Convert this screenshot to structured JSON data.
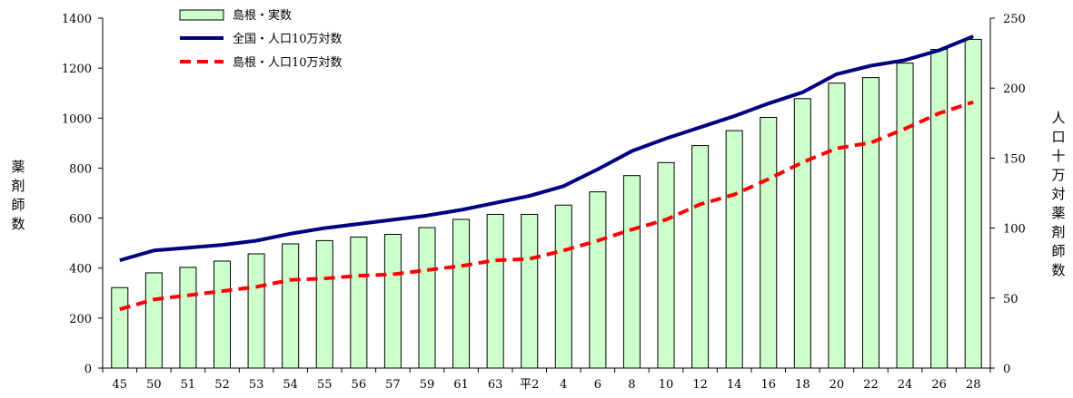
{
  "chart_data": {
    "type": "bar+line",
    "categories": [
      "45",
      "50",
      "51",
      "52",
      "53",
      "54",
      "55",
      "56",
      "57",
      "59",
      "61",
      "63",
      "平2",
      "4",
      "6",
      "8",
      "10",
      "12",
      "14",
      "16",
      "18",
      "20",
      "22",
      "24",
      "26",
      "28"
    ],
    "bar_series": {
      "name": "島根・実数",
      "color": "#ccffcc",
      "values": [
        322,
        381,
        403,
        428,
        457,
        497,
        510,
        524,
        535,
        562,
        595,
        615,
        615,
        652,
        705,
        770,
        822,
        890,
        950,
        1003,
        1078,
        1140,
        1162,
        1220,
        1275,
        1315
      ]
    },
    "line_series": [
      {
        "name": "全国・人口10万対数",
        "color": "#000080",
        "style": "solid",
        "values": [
          77,
          84,
          86,
          88,
          91,
          96,
          100,
          103,
          106,
          109,
          113,
          118,
          123,
          130,
          142,
          155,
          164,
          172,
          180,
          189,
          197,
          210,
          216,
          220,
          227,
          237
        ]
      },
      {
        "name": "島根・人口10万対数",
        "color": "#ff0000",
        "style": "dashed",
        "values": [
          42,
          49,
          52,
          55,
          58,
          63,
          64,
          66,
          67,
          70,
          73,
          77,
          78,
          84,
          91,
          99,
          106,
          117,
          124,
          135,
          147,
          157,
          161,
          171,
          182,
          190
        ]
      }
    ],
    "y_left": {
      "min": 0,
      "max": 1400,
      "ticks": [
        0,
        200,
        400,
        600,
        800,
        1000,
        1200,
        1400
      ],
      "label": [
        "薬",
        "剤",
        "師",
        "数"
      ]
    },
    "y_right": {
      "min": 0,
      "max": 250,
      "ticks": [
        0,
        50,
        100,
        150,
        200,
        250
      ],
      "label": [
        "人",
        "口",
        "十",
        "万",
        "対",
        "薬",
        "剤",
        "師",
        "数"
      ]
    },
    "legend_position": "top-left",
    "grid": false
  }
}
